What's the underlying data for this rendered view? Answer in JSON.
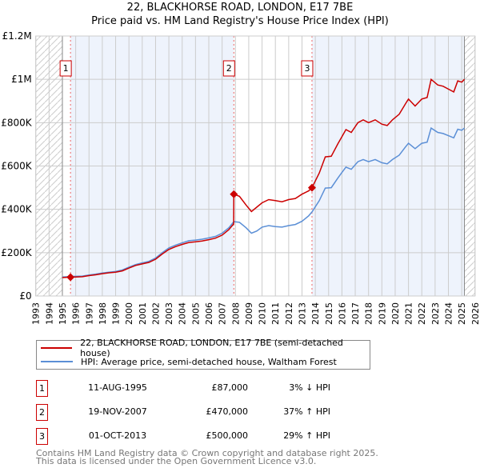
{
  "title_line1": "22, BLACKHORSE ROAD, LONDON, E17 7BE",
  "title_line2": "Price paid vs. HM Land Registry's House Price Index (HPI)",
  "legend": {
    "property": "22, BLACKHORSE ROAD, LONDON, E17 7BE (semi-detached house)",
    "hpi": "HPI: Average price, semi-detached house, Waltham Forest"
  },
  "sales": [
    {
      "num": "1",
      "date": "11-AUG-1995",
      "price": "£87,000",
      "hpi": "3% ↓ HPI"
    },
    {
      "num": "2",
      "date": "19-NOV-2007",
      "price": "£470,000",
      "hpi": "37% ↑ HPI"
    },
    {
      "num": "3",
      "date": "01-OCT-2013",
      "price": "£500,000",
      "hpi": "29% ↑ HPI"
    }
  ],
  "footer": {
    "line1": "Contains HM Land Registry data © Crown copyright and database right 2025.",
    "line2": "This data is licensed under the Open Government Licence v3.0."
  },
  "colors": {
    "property": "#cc0000",
    "hpi": "#5b8fd6",
    "shade": "#eef3fc"
  },
  "chart_data": {
    "type": "line",
    "xlim": [
      1993,
      2026
    ],
    "ylim": [
      0,
      1200000
    ],
    "x_ticks": [
      "1993",
      "1994",
      "1995",
      "1996",
      "1997",
      "1998",
      "1999",
      "2000",
      "2001",
      "2002",
      "2003",
      "2004",
      "2005",
      "2006",
      "2007",
      "2008",
      "2009",
      "2010",
      "2011",
      "2012",
      "2013",
      "2014",
      "2015",
      "2016",
      "2017",
      "2018",
      "2019",
      "2020",
      "2021",
      "2022",
      "2023",
      "2024",
      "2025",
      "2026"
    ],
    "y_ticks": [
      {
        "v": 0,
        "label": "£0"
      },
      {
        "v": 200000,
        "label": "£200K"
      },
      {
        "v": 400000,
        "label": "£400K"
      },
      {
        "v": 600000,
        "label": "£600K"
      },
      {
        "v": 800000,
        "label": "£800K"
      },
      {
        "v": 1000000,
        "label": "£1M"
      },
      {
        "v": 1200000,
        "label": "£1.2M"
      }
    ],
    "grid": true,
    "hatched_before": 1995,
    "hatched_after": 2025.2,
    "sale_points": [
      {
        "label": "1",
        "x": 1995.61,
        "y": 87000
      },
      {
        "label": "2",
        "x": 2007.88,
        "y": 470000
      },
      {
        "label": "3",
        "x": 2013.75,
        "y": 500000
      }
    ],
    "series": [
      {
        "name": "22, BLACKHORSE ROAD, LONDON, E17 7BE (semi-detached house)",
        "unit": "£K",
        "points": [
          [
            1995,
            85
          ],
          [
            1995.61,
            87
          ],
          [
            1996,
            88
          ],
          [
            1996.5,
            89
          ],
          [
            1997,
            94
          ],
          [
            1997.5,
            98
          ],
          [
            1998,
            103
          ],
          [
            1998.5,
            107
          ],
          [
            1999,
            110
          ],
          [
            1999.5,
            116
          ],
          [
            2000,
            129
          ],
          [
            2000.5,
            141
          ],
          [
            2001,
            148
          ],
          [
            2001.5,
            155
          ],
          [
            2002,
            170
          ],
          [
            2002.5,
            194
          ],
          [
            2003,
            215
          ],
          [
            2003.5,
            228
          ],
          [
            2004,
            238
          ],
          [
            2004.5,
            247
          ],
          [
            2005,
            250
          ],
          [
            2005.5,
            254
          ],
          [
            2006,
            260
          ],
          [
            2006.5,
            267
          ],
          [
            2007,
            281
          ],
          [
            2007.5,
            306
          ],
          [
            2007.87,
            333
          ],
          [
            2007.88,
            470
          ],
          [
            2008.3,
            460
          ],
          [
            2008.8,
            420
          ],
          [
            2009.2,
            390
          ],
          [
            2009.6,
            410
          ],
          [
            2010,
            430
          ],
          [
            2010.5,
            445
          ],
          [
            2011,
            440
          ],
          [
            2011.5,
            435
          ],
          [
            2012,
            445
          ],
          [
            2012.5,
            450
          ],
          [
            2013,
            470
          ],
          [
            2013.5,
            485
          ],
          [
            2013.75,
            500
          ],
          [
            2014.3,
            568
          ],
          [
            2014.75,
            642
          ],
          [
            2015.2,
            645
          ],
          [
            2015.7,
            703
          ],
          [
            2016,
            735
          ],
          [
            2016.3,
            768
          ],
          [
            2016.7,
            755
          ],
          [
            2017.2,
            800
          ],
          [
            2017.6,
            813
          ],
          [
            2018,
            800
          ],
          [
            2018.5,
            813
          ],
          [
            2019,
            793
          ],
          [
            2019.4,
            787
          ],
          [
            2019.8,
            813
          ],
          [
            2020.3,
            839
          ],
          [
            2020.8,
            890
          ],
          [
            2021,
            909
          ],
          [
            2021.5,
            877
          ],
          [
            2022,
            909
          ],
          [
            2022.4,
            916
          ],
          [
            2022.7,
            1000
          ],
          [
            2023.2,
            974
          ],
          [
            2023.6,
            968
          ],
          [
            2024,
            955
          ],
          [
            2024.4,
            942
          ],
          [
            2024.7,
            993
          ],
          [
            2025,
            987
          ],
          [
            2025.2,
            1000
          ]
        ]
      },
      {
        "name": "HPI: Average price, semi-detached house, Waltham Forest",
        "unit": "£K",
        "points": [
          [
            1995,
            88
          ],
          [
            1995.6,
            90
          ],
          [
            1996,
            91
          ],
          [
            1996.5,
            92
          ],
          [
            1997,
            97
          ],
          [
            1997.5,
            101
          ],
          [
            1998,
            106
          ],
          [
            1998.5,
            110
          ],
          [
            1999,
            113
          ],
          [
            1999.5,
            120
          ],
          [
            2000,
            133
          ],
          [
            2000.5,
            145
          ],
          [
            2001,
            153
          ],
          [
            2001.5,
            160
          ],
          [
            2002,
            175
          ],
          [
            2002.5,
            200
          ],
          [
            2003,
            222
          ],
          [
            2003.5,
            235
          ],
          [
            2004,
            245
          ],
          [
            2004.5,
            255
          ],
          [
            2005,
            258
          ],
          [
            2005.5,
            262
          ],
          [
            2006,
            268
          ],
          [
            2006.5,
            275
          ],
          [
            2007,
            290
          ],
          [
            2007.5,
            315
          ],
          [
            2007.88,
            343
          ],
          [
            2008.3,
            340
          ],
          [
            2008.8,
            315
          ],
          [
            2009.2,
            290
          ],
          [
            2009.6,
            300
          ],
          [
            2010,
            318
          ],
          [
            2010.5,
            325
          ],
          [
            2011,
            320
          ],
          [
            2011.5,
            318
          ],
          [
            2012,
            325
          ],
          [
            2012.5,
            330
          ],
          [
            2013,
            345
          ],
          [
            2013.5,
            370
          ],
          [
            2013.75,
            388
          ],
          [
            2014.3,
            440
          ],
          [
            2014.75,
            498
          ],
          [
            2015.2,
            500
          ],
          [
            2015.7,
            545
          ],
          [
            2016,
            570
          ],
          [
            2016.3,
            595
          ],
          [
            2016.7,
            585
          ],
          [
            2017.2,
            620
          ],
          [
            2017.6,
            630
          ],
          [
            2018,
            620
          ],
          [
            2018.5,
            630
          ],
          [
            2019,
            615
          ],
          [
            2019.4,
            610
          ],
          [
            2019.8,
            630
          ],
          [
            2020.3,
            650
          ],
          [
            2020.8,
            690
          ],
          [
            2021,
            705
          ],
          [
            2021.5,
            680
          ],
          [
            2022,
            705
          ],
          [
            2022.4,
            710
          ],
          [
            2022.7,
            775
          ],
          [
            2023.2,
            755
          ],
          [
            2023.6,
            750
          ],
          [
            2024,
            740
          ],
          [
            2024.4,
            730
          ],
          [
            2024.7,
            770
          ],
          [
            2025,
            765
          ],
          [
            2025.2,
            775
          ]
        ]
      }
    ]
  }
}
